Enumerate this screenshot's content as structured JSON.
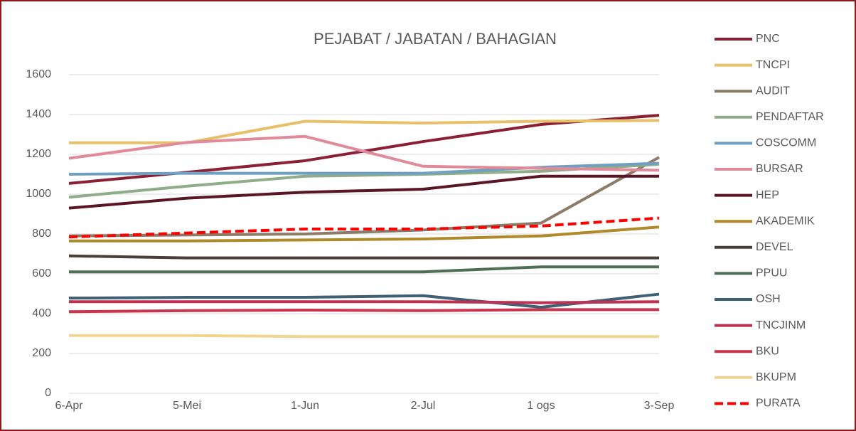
{
  "chart_data": {
    "type": "line",
    "title": "PEJABAT / JABATAN / BAHAGIAN",
    "categories": [
      "6-Apr",
      "5-Mei",
      "1-Jun",
      "2-Jul",
      "1 ogs",
      "3-Sep"
    ],
    "ylim": [
      0,
      1600
    ],
    "yticks": [
      0,
      200,
      400,
      600,
      800,
      1000,
      1200,
      1400,
      1600
    ],
    "grid": true,
    "legend": "right",
    "series": [
      {
        "name": "PNC",
        "color": "#8b2035",
        "values": [
          1054,
          1110,
          1168,
          1264,
          1350,
          1396
        ]
      },
      {
        "name": "TNCPI",
        "color": "#e8c06a",
        "values": [
          1258,
          1258,
          1366,
          1357,
          1366,
          1370
        ]
      },
      {
        "name": "AUDIT",
        "color": "#8c7b66",
        "values": [
          790,
          795,
          800,
          820,
          855,
          1185
        ]
      },
      {
        "name": "PENDAFTAR",
        "color": "#8fad88",
        "values": [
          985,
          1040,
          1090,
          1100,
          1115,
          1150
        ]
      },
      {
        "name": "COSCOMM",
        "color": "#6f9fc1",
        "values": [
          1100,
          1105,
          1105,
          1105,
          1135,
          1155
        ]
      },
      {
        "name": "BURSAR",
        "color": "#e08a9a",
        "values": [
          1180,
          1260,
          1290,
          1140,
          1130,
          1120
        ]
      },
      {
        "name": "HEP",
        "color": "#5a1624",
        "values": [
          930,
          980,
          1010,
          1025,
          1090,
          1090
        ]
      },
      {
        "name": "AKADEMIK",
        "color": "#b08a2a",
        "values": [
          765,
          765,
          770,
          775,
          790,
          835
        ]
      },
      {
        "name": "DEVEL",
        "color": "#4a3f38",
        "values": [
          690,
          680,
          680,
          680,
          680,
          680
        ]
      },
      {
        "name": "PPUU",
        "color": "#4f6f52",
        "values": [
          610,
          610,
          610,
          610,
          635,
          635
        ]
      },
      {
        "name": "OSH",
        "color": "#3f5f75",
        "values": [
          478,
          482,
          482,
          490,
          432,
          498
        ]
      },
      {
        "name": "TNCJINM",
        "color": "#c03050",
        "values": [
          460,
          460,
          460,
          460,
          455,
          460
        ]
      },
      {
        "name": "BKU",
        "color": "#c8354c",
        "values": [
          410,
          415,
          418,
          415,
          420,
          420
        ]
      },
      {
        "name": "BKUPM",
        "color": "#f0d590",
        "values": [
          290,
          290,
          285,
          285,
          285,
          285
        ]
      },
      {
        "name": "PURATA",
        "color": "#ff0000",
        "style": "dashed",
        "values": [
          785,
          805,
          825,
          825,
          840,
          880
        ]
      }
    ]
  }
}
